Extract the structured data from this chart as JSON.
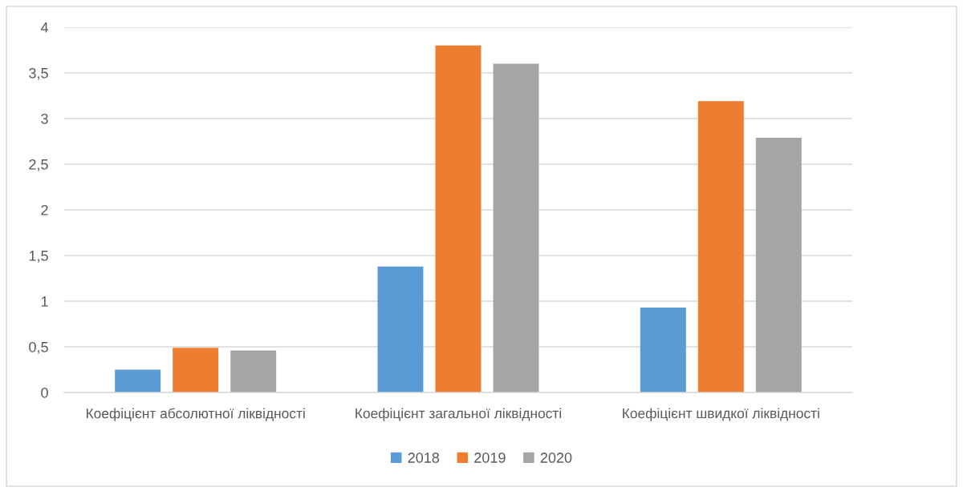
{
  "chart_data": {
    "type": "bar",
    "categories": [
      "Коефіцієнт абсолютної ліквідності",
      "Коефіцієнт загальної ліквідності",
      "Коефіцієнт швидкої ліквідності"
    ],
    "series": [
      {
        "name": "2018",
        "color": "#5b9bd5",
        "values": [
          0.25,
          1.38,
          0.93
        ]
      },
      {
        "name": "2019",
        "color": "#ed7d31",
        "values": [
          0.49,
          3.8,
          3.19
        ]
      },
      {
        "name": "2020",
        "color": "#a5a5a5",
        "values": [
          0.46,
          3.6,
          2.79
        ]
      }
    ],
    "ylim": [
      0,
      4
    ],
    "yticks": [
      0,
      {
        "value": 0.5,
        "label": "0,5"
      },
      1,
      {
        "value": 1.5,
        "label": "1,5"
      },
      2,
      {
        "value": 2.5,
        "label": "2,5"
      },
      3,
      {
        "value": 3.5,
        "label": "3,5"
      },
      4
    ],
    "grid": "y",
    "legend": "bottom"
  }
}
